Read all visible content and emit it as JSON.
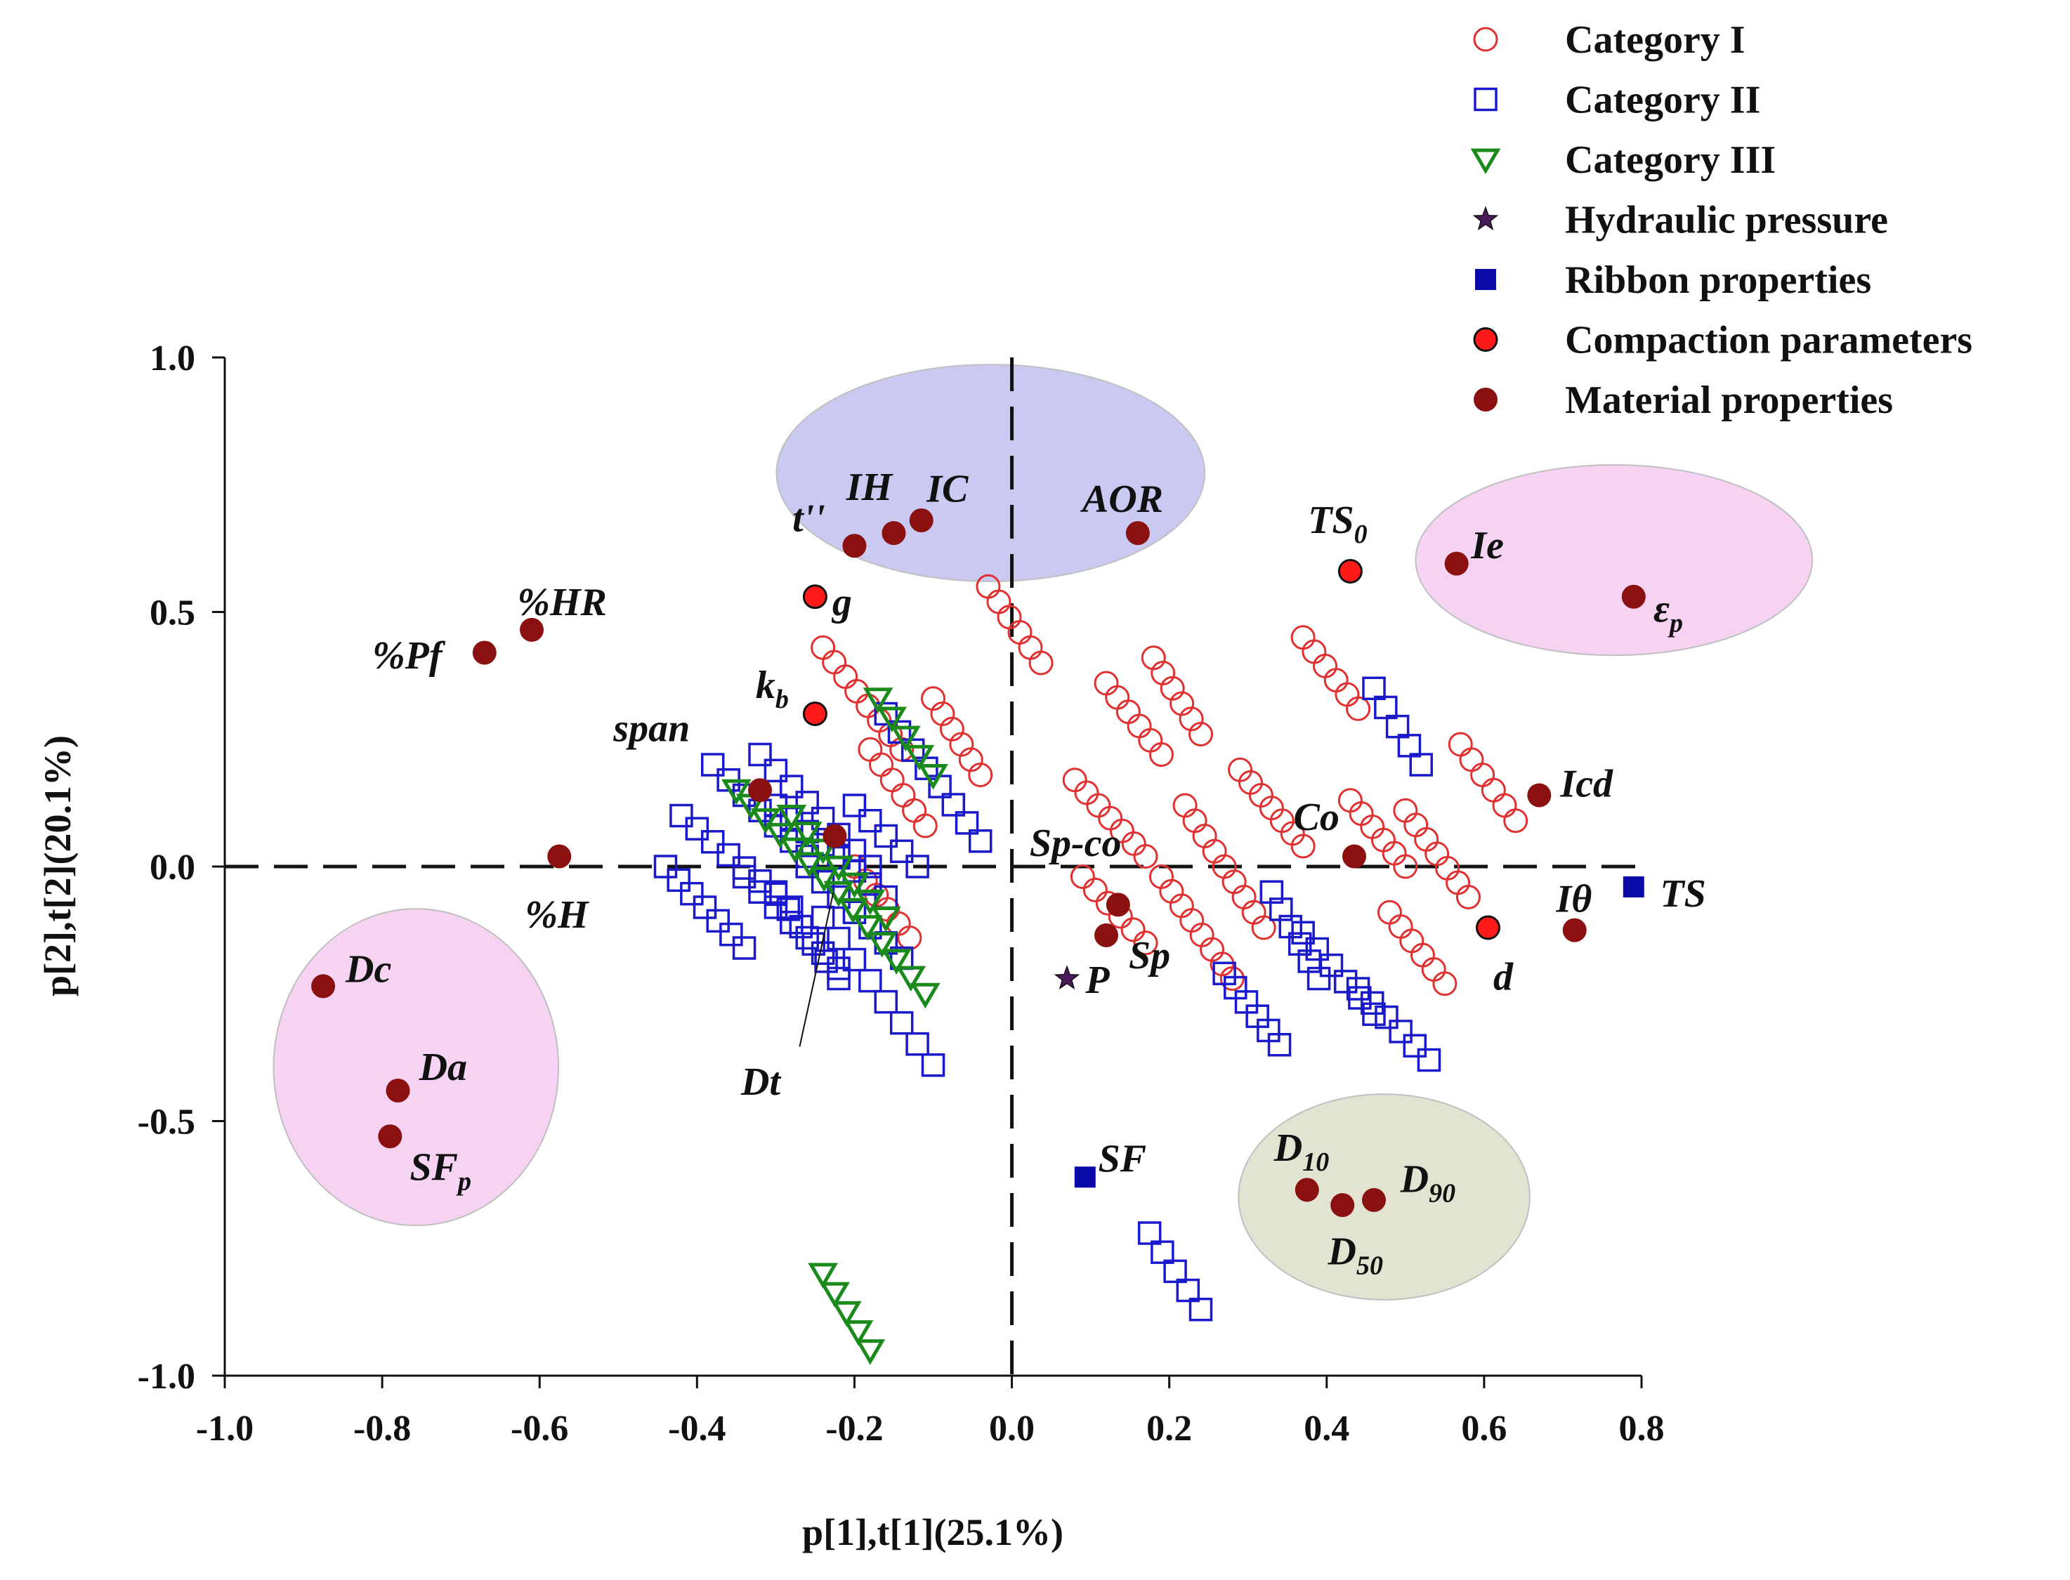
{
  "chart_data": {
    "type": "scatter",
    "title": "",
    "xlabel": "p[1],t[1](25.1%)",
    "ylabel": "p[2],t[2](20.1%)",
    "xlim": [
      -1.0,
      0.8
    ],
    "ylim": [
      -1.0,
      1.0
    ],
    "xticks": [
      "-1.0",
      "-0.8",
      "-0.6",
      "-0.4",
      "-0.2",
      "0.0",
      "0.2",
      "0.4",
      "0.6",
      "0.8"
    ],
    "yticks": [
      "1.0",
      "0.5",
      "0.0",
      "-0.5",
      "-1.0"
    ],
    "grid": false,
    "reference_lines": {
      "x": 0,
      "y": 0,
      "style": "dashed"
    },
    "legend_position": "top-right",
    "legend": [
      {
        "label": "Category I",
        "marker": "open-circle",
        "color": "#e03030"
      },
      {
        "label": "Category II",
        "marker": "open-square",
        "color": "#1a1acc"
      },
      {
        "label": "Category III",
        "marker": "open-triangle-down",
        "color": "#1a8a1a"
      },
      {
        "label": "Hydraulic pressure",
        "marker": "star",
        "color": "#4a1a5a"
      },
      {
        "label": "Ribbon properties",
        "marker": "filled-square",
        "color": "#0a0aa8"
      },
      {
        "label": "Compaction parameters",
        "marker": "filled-circle-outlined",
        "color": "#ff1a1a"
      },
      {
        "label": "Material properties",
        "marker": "filled-circle",
        "color": "#8b1010"
      }
    ],
    "observation_runs": {
      "Category I": [
        {
          "from": [
            -0.03,
            0.55
          ],
          "to": [
            0.037,
            0.4
          ],
          "n": 6
        },
        {
          "from": [
            -0.24,
            0.43
          ],
          "to": [
            -0.14,
            0.23
          ],
          "n": 8
        },
        {
          "from": [
            -0.18,
            0.23
          ],
          "to": [
            -0.11,
            0.08
          ],
          "n": 6
        },
        {
          "from": [
            -0.1,
            0.33
          ],
          "to": [
            -0.04,
            0.18
          ],
          "n": 6
        },
        {
          "from": [
            0.12,
            0.36
          ],
          "to": [
            0.19,
            0.22
          ],
          "n": 6
        },
        {
          "from": [
            0.18,
            0.41
          ],
          "to": [
            0.24,
            0.26
          ],
          "n": 6
        },
        {
          "from": [
            0.08,
            0.17
          ],
          "to": [
            0.17,
            0.02
          ],
          "n": 7
        },
        {
          "from": [
            0.09,
            -0.02
          ],
          "to": [
            0.17,
            -0.15
          ],
          "n": 6
        },
        {
          "from": [
            0.19,
            -0.02
          ],
          "to": [
            0.28,
            -0.22
          ],
          "n": 8
        },
        {
          "from": [
            0.22,
            0.12
          ],
          "to": [
            0.32,
            -0.12
          ],
          "n": 9
        },
        {
          "from": [
            0.29,
            0.19
          ],
          "to": [
            0.37,
            0.04
          ],
          "n": 7
        },
        {
          "from": [
            0.37,
            0.45
          ],
          "to": [
            0.44,
            0.31
          ],
          "n": 6
        },
        {
          "from": [
            0.43,
            0.13
          ],
          "to": [
            0.5,
            0.0
          ],
          "n": 6
        },
        {
          "from": [
            0.5,
            0.11
          ],
          "to": [
            0.58,
            -0.06
          ],
          "n": 7
        },
        {
          "from": [
            0.48,
            -0.09
          ],
          "to": [
            0.55,
            -0.23
          ],
          "n": 6
        },
        {
          "from": [
            0.57,
            0.24
          ],
          "to": [
            0.64,
            0.09
          ],
          "n": 6
        },
        {
          "from": [
            -0.2,
            0.0
          ],
          "to": [
            -0.13,
            -0.14
          ],
          "n": 6
        }
      ],
      "Category II": [
        {
          "from": [
            -0.38,
            0.2
          ],
          "to": [
            -0.26,
            0.02
          ],
          "n": 7
        },
        {
          "from": [
            -0.42,
            0.1
          ],
          "to": [
            -0.28,
            -0.08
          ],
          "n": 8
        },
        {
          "from": [
            -0.44,
            0.0
          ],
          "to": [
            -0.34,
            -0.16
          ],
          "n": 7
        },
        {
          "from": [
            -0.32,
            0.22
          ],
          "to": [
            -0.18,
            0.0
          ],
          "n": 8
        },
        {
          "from": [
            -0.3,
            0.12
          ],
          "to": [
            -0.16,
            -0.06
          ],
          "n": 8
        },
        {
          "from": [
            -0.34,
            -0.02
          ],
          "to": [
            -0.22,
            -0.2
          ],
          "n": 7
        },
        {
          "from": [
            -0.26,
            0.0
          ],
          "to": [
            -0.14,
            -0.18
          ],
          "n": 7
        },
        {
          "from": [
            -0.2,
            0.12
          ],
          "to": [
            -0.12,
            0.0
          ],
          "n": 5
        },
        {
          "from": [
            -0.24,
            -0.1
          ],
          "to": [
            -0.1,
            -0.39
          ],
          "n": 8
        },
        {
          "from": [
            -0.3,
            -0.05
          ],
          "to": [
            -0.22,
            -0.22
          ],
          "n": 6
        },
        {
          "from": [
            -0.16,
            0.3
          ],
          "to": [
            -0.04,
            0.05
          ],
          "n": 8
        },
        {
          "from": [
            0.27,
            -0.21
          ],
          "to": [
            0.34,
            -0.35
          ],
          "n": 6
        },
        {
          "from": [
            0.33,
            -0.05
          ],
          "to": [
            0.39,
            -0.22
          ],
          "n": 6
        },
        {
          "from": [
            0.37,
            -0.13
          ],
          "to": [
            0.46,
            -0.29
          ],
          "n": 6
        },
        {
          "from": [
            0.44,
            -0.24
          ],
          "to": [
            0.53,
            -0.38
          ],
          "n": 6
        },
        {
          "from": [
            0.46,
            0.35
          ],
          "to": [
            0.52,
            0.2
          ],
          "n": 5
        },
        {
          "from": [
            0.175,
            -0.72
          ],
          "to": [
            0.24,
            -0.87
          ],
          "n": 5
        }
      ],
      "Category III": [
        {
          "from": [
            -0.35,
            0.15
          ],
          "to": [
            -0.22,
            -0.05
          ],
          "n": 8
        },
        {
          "from": [
            -0.28,
            0.1
          ],
          "to": [
            -0.16,
            -0.1
          ],
          "n": 7
        },
        {
          "from": [
            -0.22,
            -0.05
          ],
          "to": [
            -0.11,
            -0.25
          ],
          "n": 7
        },
        {
          "from": [
            -0.17,
            0.33
          ],
          "to": [
            -0.1,
            0.18
          ],
          "n": 5
        },
        {
          "from": [
            -0.24,
            -0.8
          ],
          "to": [
            -0.18,
            -0.95
          ],
          "n": 5
        }
      ]
    },
    "variables": [
      {
        "label": "t''",
        "sub": "",
        "group": "Material properties",
        "x": -0.2,
        "y": 0.63
      },
      {
        "label": "IH",
        "sub": "",
        "group": "Material properties",
        "x": -0.15,
        "y": 0.655
      },
      {
        "label": "IC",
        "sub": "",
        "group": "Material properties",
        "x": -0.115,
        "y": 0.68
      },
      {
        "label": "AOR",
        "sub": "",
        "group": "Material properties",
        "x": 0.16,
        "y": 0.655
      },
      {
        "label": "TS",
        "sub": "0",
        "group": "Compaction parameters",
        "x": 0.43,
        "y": 0.58
      },
      {
        "label": "Ie",
        "sub": "",
        "group": "Material properties",
        "x": 0.565,
        "y": 0.595
      },
      {
        "label": "ε",
        "sub": "p",
        "group": "Material properties",
        "x": 0.79,
        "y": 0.53
      },
      {
        "label": "%HR",
        "sub": "",
        "group": "Material properties",
        "x": -0.61,
        "y": 0.465
      },
      {
        "label": "%Pf",
        "sub": "",
        "group": "Material properties",
        "x": -0.67,
        "y": 0.42
      },
      {
        "label": "g",
        "sub": "",
        "group": "Compaction parameters",
        "x": -0.25,
        "y": 0.53
      },
      {
        "label": "k",
        "sub": "b",
        "group": "Compaction parameters",
        "x": -0.25,
        "y": 0.3
      },
      {
        "label": "span",
        "sub": "",
        "group": "Material properties",
        "x": -0.32,
        "y": 0.15
      },
      {
        "label": "Icd",
        "sub": "",
        "group": "Material properties",
        "x": 0.67,
        "y": 0.14
      },
      {
        "label": "Co",
        "sub": "",
        "group": "Material properties",
        "x": 0.435,
        "y": 0.02
      },
      {
        "label": "Sp-co",
        "sub": "",
        "group": "Material properties",
        "x": 0.135,
        "y": -0.075
      },
      {
        "label": "%H",
        "sub": "",
        "group": "Material properties",
        "x": -0.575,
        "y": 0.02
      },
      {
        "label": "Iθ",
        "sub": "",
        "group": "Material properties",
        "x": 0.715,
        "y": -0.125
      },
      {
        "label": "TS",
        "sub": "",
        "group": "Ribbon properties",
        "x": 0.79,
        "y": -0.04
      },
      {
        "label": "d",
        "sub": "",
        "group": "Compaction parameters",
        "x": 0.605,
        "y": -0.12
      },
      {
        "label": "Sp",
        "sub": "",
        "group": "Material properties",
        "x": 0.12,
        "y": -0.135
      },
      {
        "label": "P",
        "sub": "",
        "group": "Hydraulic pressure",
        "x": 0.07,
        "y": -0.22
      },
      {
        "label": "Dc",
        "sub": "",
        "group": "Material properties",
        "x": -0.875,
        "y": -0.235
      },
      {
        "label": "Da",
        "sub": "",
        "group": "Material properties",
        "x": -0.78,
        "y": -0.44
      },
      {
        "label": "SF",
        "sub": "p",
        "group": "Material properties",
        "x": -0.79,
        "y": -0.53
      },
      {
        "label": "Dt",
        "sub": "",
        "group": "Material properties",
        "x": -0.225,
        "y": 0.06
      },
      {
        "label": "SF",
        "sub": "",
        "group": "Ribbon properties",
        "x": 0.093,
        "y": -0.61
      },
      {
        "label": "D",
        "sub": "10",
        "group": "Material properties",
        "x": 0.375,
        "y": -0.635
      },
      {
        "label": "D",
        "sub": "90",
        "group": "Material properties",
        "x": 0.46,
        "y": -0.655
      },
      {
        "label": "D",
        "sub": "50",
        "group": "Material properties",
        "x": 0.42,
        "y": -0.665
      }
    ],
    "highlight_ellipses": [
      {
        "color": "#c9c9f2",
        "center": [
          -0.027,
          0.773
        ],
        "rx": 0.272,
        "ry": 0.213
      },
      {
        "color": "#f6d2f3",
        "center": [
          0.765,
          0.602
        ],
        "rx": 0.252,
        "ry": 0.187
      },
      {
        "color": "#f6d2f3",
        "center": [
          -0.757,
          -0.394
        ],
        "rx": 0.181,
        "ry": 0.311
      },
      {
        "color": "#e3e3d2",
        "center": [
          0.473,
          -0.649
        ],
        "rx": 0.185,
        "ry": 0.202
      }
    ]
  }
}
